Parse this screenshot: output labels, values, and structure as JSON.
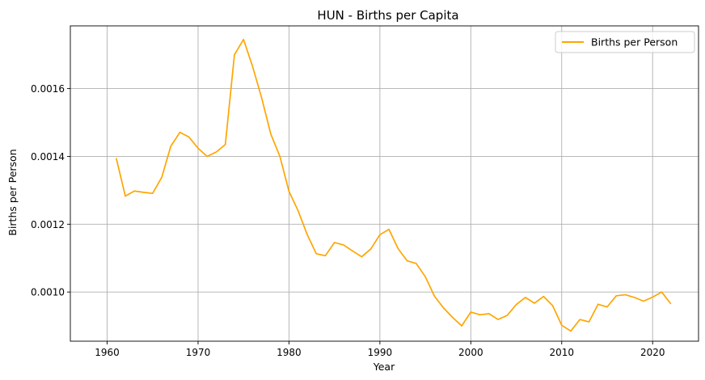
{
  "chart_data": {
    "type": "line",
    "title": "HUN - Births per Capita",
    "xlabel": "Year",
    "ylabel": "Births per Person",
    "xlim": [
      1955.95,
      2025.05
    ],
    "ylim": [
      0.000855,
      0.001785
    ],
    "x_ticks": [
      1960,
      1970,
      1980,
      1990,
      2000,
      2010,
      2020
    ],
    "x_tick_labels": [
      "1960",
      "1970",
      "1980",
      "1990",
      "2000",
      "2010",
      "2020"
    ],
    "y_ticks": [
      0.001,
      0.0012,
      0.0014,
      0.0016
    ],
    "y_tick_labels": [
      "0.0010",
      "0.0012",
      "0.0014",
      "0.0016"
    ],
    "grid": true,
    "legend_position": "top-right",
    "series": [
      {
        "name": "Births per Person",
        "color": "#ffa500",
        "x": [
          1961,
          1962,
          1963,
          1964,
          1965,
          1966,
          1967,
          1968,
          1969,
          1970,
          1971,
          1972,
          1973,
          1974,
          1975,
          1976,
          1977,
          1978,
          1979,
          1980,
          1981,
          1982,
          1983,
          1984,
          1985,
          1986,
          1987,
          1988,
          1989,
          1990,
          1991,
          1992,
          1993,
          1994,
          1995,
          1996,
          1997,
          1998,
          1999,
          2000,
          2001,
          2002,
          2003,
          2004,
          2005,
          2006,
          2007,
          2008,
          2009,
          2010,
          2011,
          2012,
          2013,
          2014,
          2015,
          2016,
          2017,
          2018,
          2019,
          2020,
          2021,
          2022
        ],
        "values": [
          0.001395,
          0.001283,
          0.001298,
          0.001294,
          0.001291,
          0.001338,
          0.00143,
          0.001471,
          0.001457,
          0.001424,
          0.0014,
          0.001413,
          0.001435,
          0.0017,
          0.001745,
          0.001665,
          0.001572,
          0.001466,
          0.0014,
          0.001297,
          0.00124,
          0.00117,
          0.001113,
          0.001107,
          0.001146,
          0.001139,
          0.001121,
          0.001104,
          0.001127,
          0.001169,
          0.001185,
          0.001128,
          0.001092,
          0.001084,
          0.001045,
          0.000988,
          0.000953,
          0.000925,
          0.0009,
          0.000941,
          0.000933,
          0.000936,
          0.000919,
          0.000931,
          0.000963,
          0.000984,
          0.000967,
          0.000987,
          0.00096,
          0.000902,
          0.000885,
          0.000919,
          0.000912,
          0.000964,
          0.000956,
          0.000989,
          0.000992,
          0.000984,
          0.000973,
          0.000985,
          0.001,
          0.000965
        ]
      }
    ]
  }
}
